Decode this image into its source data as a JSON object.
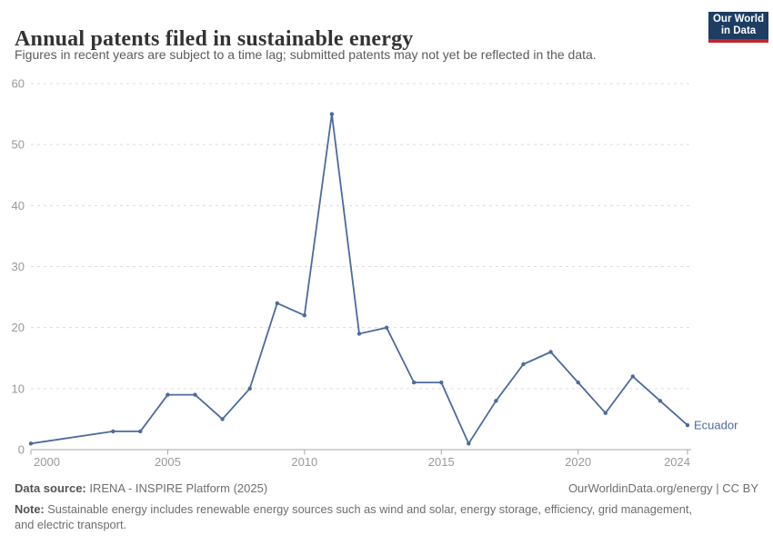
{
  "header": {
    "logo": {
      "line1": "Our World",
      "line2": "in Data"
    }
  },
  "chart_data": {
    "type": "line",
    "title": "Annual patents filed in sustainable energy",
    "subtitle": "Figures in recent years are subject to a time lag; submitted patents may not yet be reflected in the data.",
    "xlabel": "",
    "ylabel": "",
    "xlim": [
      2000,
      2024
    ],
    "ylim": [
      0,
      60
    ],
    "yticks": [
      0,
      10,
      20,
      30,
      40,
      50,
      60
    ],
    "xticks": [
      2000,
      2005,
      2010,
      2015,
      2020,
      2024
    ],
    "grid": "dashed horizontal",
    "legend_position": "end-of-line label",
    "series": [
      {
        "name": "Ecuador",
        "color": "#4c6a9d",
        "points": [
          [
            2000,
            1
          ],
          [
            2003,
            3
          ],
          [
            2004,
            3
          ],
          [
            2005,
            9
          ],
          [
            2006,
            9
          ],
          [
            2007,
            5
          ],
          [
            2008,
            10
          ],
          [
            2009,
            24
          ],
          [
            2010,
            22
          ],
          [
            2011,
            55
          ],
          [
            2012,
            19
          ],
          [
            2013,
            20
          ],
          [
            2014,
            11
          ],
          [
            2015,
            11
          ],
          [
            2016,
            1
          ],
          [
            2017,
            8
          ],
          [
            2018,
            14
          ],
          [
            2019,
            16
          ],
          [
            2020,
            11
          ],
          [
            2021,
            6
          ],
          [
            2022,
            12
          ],
          [
            2023,
            8
          ],
          [
            2024,
            4
          ]
        ]
      }
    ]
  },
  "footer": {
    "source_label": "Data source:",
    "source_text": " IRENA - INSPIRE Platform (2025)",
    "credit": "OurWorldinData.org/energy | CC BY",
    "note_label": "Note:",
    "note_text": " Sustainable energy includes renewable energy sources such as wind and solar, energy storage, efficiency, grid management, and electric transport."
  },
  "colors": {
    "line": "#4c6a9d",
    "logo_bg": "#1d3d63",
    "logo_stripe": "#c0272d",
    "gridline": "#dcdcdc",
    "axis": "#a7a7a7",
    "tick_label": "#999999",
    "title": "#333333",
    "subtitle": "#5b5b5b"
  }
}
